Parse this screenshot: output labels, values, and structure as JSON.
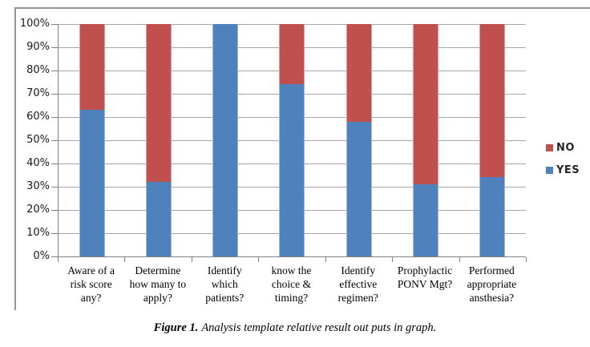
{
  "caption": {
    "label": "Figure 1.",
    "text": "Analysis template relative result out puts in graph."
  },
  "colors": {
    "yes": "#4F81BD",
    "no": "#C0504D",
    "gridline": "#A6A6A6",
    "axis": "#808080",
    "frame_border": "#969696"
  },
  "chart_data": {
    "type": "bar",
    "subtype": "stacked-100-percent-column",
    "title": "",
    "xlabel": "",
    "ylabel": "",
    "ylim": [
      0,
      100
    ],
    "grid": true,
    "legend_position": "right",
    "categories": [
      "Aware of a\nrisk score\nany?",
      "Determine\nhow many to\napply?",
      "Identify\nwhich\npatients?",
      "know the\nchoice &\ntiming?",
      "Identify\neffective\nregimen?",
      "Prophylactic\nPONV Mgt?",
      "Performed\nappropriate\nansthesia?"
    ],
    "series": [
      {
        "name": "YES",
        "color": "#4F81BD",
        "values": [
          63,
          32,
          100,
          74,
          58,
          31,
          34
        ]
      },
      {
        "name": "NO",
        "color": "#C0504D",
        "values": [
          37,
          68,
          0,
          26,
          42,
          69,
          66
        ]
      }
    ],
    "legend_order": [
      "NO",
      "YES"
    ],
    "y_ticks": [
      "0%",
      "10%",
      "20%",
      "30%",
      "40%",
      "50%",
      "60%",
      "70%",
      "80%",
      "90%",
      "100%"
    ]
  }
}
